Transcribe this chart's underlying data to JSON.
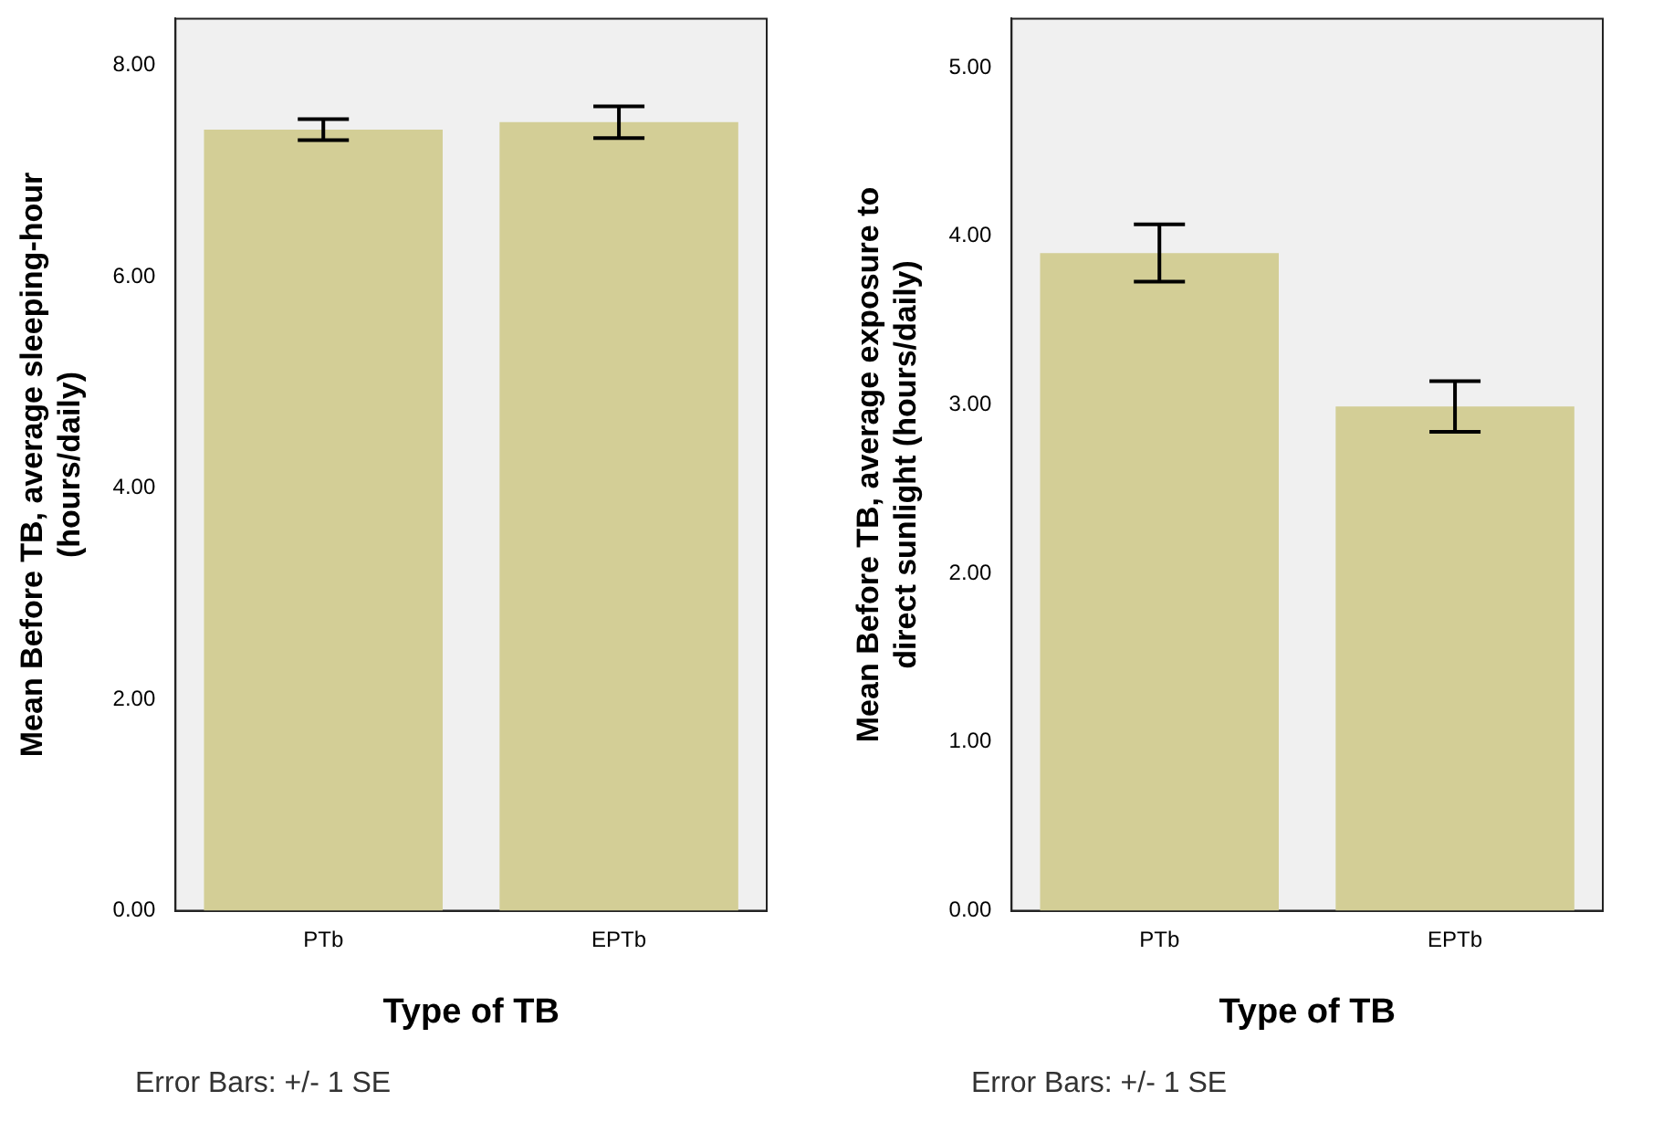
{
  "chart_data": [
    {
      "type": "bar",
      "xlabel": "Type of TB",
      "ylabel": "Mean Before TB, average sleeping-hour (hours/daily)",
      "categories": [
        "PTb",
        "EPTb"
      ],
      "values": [
        7.39,
        7.46
      ],
      "errors": [
        0.1,
        0.15
      ],
      "color": "#d3ce96",
      "ylim": [
        0,
        8.44
      ],
      "yticks": [
        {
          "value": 0,
          "label": "0.00"
        },
        {
          "value": 2,
          "label": "2.00"
        },
        {
          "value": 4,
          "label": "4.00"
        },
        {
          "value": 6,
          "label": "6.00"
        },
        {
          "value": 8,
          "label": "8.00"
        }
      ],
      "grid": false,
      "legend": false,
      "annotations": [
        "Error Bars: +/- 1 SE"
      ]
    },
    {
      "type": "bar",
      "xlabel": "Type of TB",
      "ylabel": "Mean Before TB, average exposure to direct sunlight (hours/daily)",
      "categories": [
        "PTb",
        "EPTb"
      ],
      "values": [
        3.9,
        2.99
      ],
      "errors": [
        0.17,
        0.15
      ],
      "color": "#d3ce96",
      "ylim": [
        0,
        5.29
      ],
      "yticks": [
        {
          "value": 0,
          "label": "0.00"
        },
        {
          "value": 1,
          "label": "1.00"
        },
        {
          "value": 2,
          "label": "2.00"
        },
        {
          "value": 3,
          "label": "3.00"
        },
        {
          "value": 4,
          "label": "4.00"
        },
        {
          "value": 5,
          "label": "5.00"
        }
      ],
      "grid": false,
      "legend": false,
      "annotations": [
        "Error Bars: +/- 1 SE"
      ]
    }
  ]
}
